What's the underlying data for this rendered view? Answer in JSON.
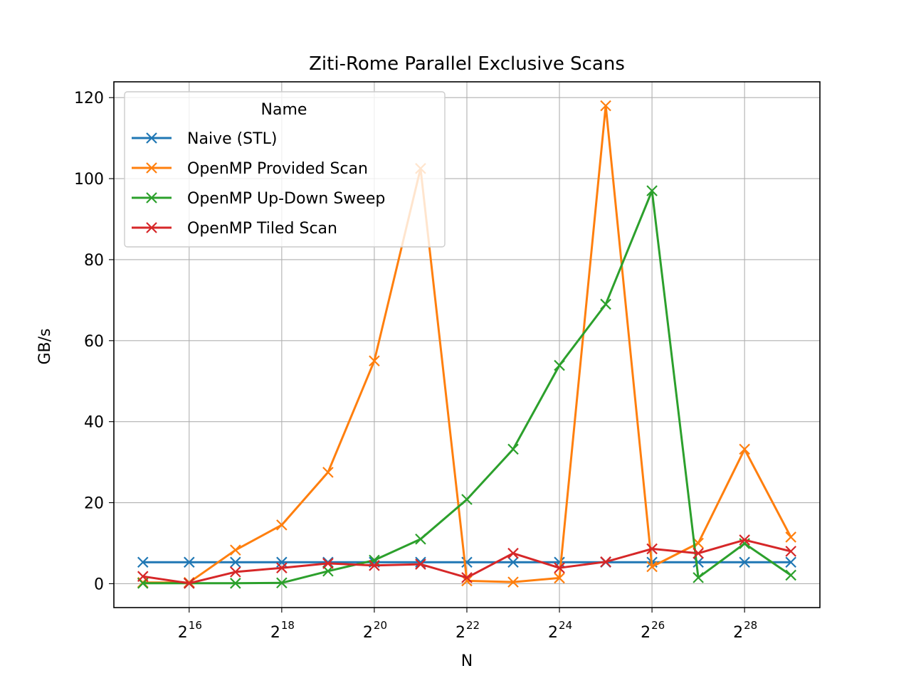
{
  "chart_data": {
    "type": "line",
    "title": "Ziti-Rome Parallel Exclusive Scans",
    "xlabel": "N",
    "ylabel": "GB/s",
    "x_scale": "log2",
    "x": [
      32768,
      65536,
      131072,
      262144,
      524288,
      1048576,
      2097152,
      4194304,
      8388608,
      16777216,
      33554432,
      67108864,
      134217728,
      268435456,
      536870912
    ],
    "xlim": [
      21220,
      829500000
    ],
    "ylim": [
      -5.9,
      123.9
    ],
    "x_ticks": [
      {
        "base": "2",
        "exp": "16",
        "value": 65536
      },
      {
        "base": "2",
        "exp": "18",
        "value": 262144
      },
      {
        "base": "2",
        "exp": "20",
        "value": 1048576
      },
      {
        "base": "2",
        "exp": "22",
        "value": 4194304
      },
      {
        "base": "2",
        "exp": "24",
        "value": 16777216
      },
      {
        "base": "2",
        "exp": "26",
        "value": 67108864
      },
      {
        "base": "2",
        "exp": "28",
        "value": 268435456
      }
    ],
    "y_ticks": [
      0,
      20,
      40,
      60,
      80,
      100,
      120
    ],
    "grid": true,
    "legend": {
      "title": "Name",
      "position": "top-left"
    },
    "series": [
      {
        "name": "Naive (STL)",
        "color": "#1f77b4",
        "marker": "x",
        "values": [
          5.3,
          5.3,
          5.3,
          5.3,
          5.3,
          5.3,
          5.3,
          5.3,
          5.3,
          5.3,
          5.3,
          5.3,
          5.3,
          5.3,
          5.3
        ]
      },
      {
        "name": "OpenMP Provided Scan",
        "color": "#ff7f0e",
        "marker": "x",
        "values": [
          0.3,
          0.3,
          8.3,
          14.5,
          27.5,
          55.0,
          102.5,
          0.7,
          0.4,
          1.4,
          118.0,
          4.2,
          10.0,
          33.2,
          11.5
        ]
      },
      {
        "name": "OpenMP Up-Down Sweep",
        "color": "#2ca02c",
        "marker": "x",
        "values": [
          0.1,
          0.1,
          0.1,
          0.2,
          3.1,
          5.8,
          11.0,
          20.8,
          33.2,
          53.9,
          69.0,
          97.0,
          1.5,
          9.9,
          2.1
        ]
      },
      {
        "name": "OpenMP Tiled Scan",
        "color": "#d62728",
        "marker": "x",
        "values": [
          1.8,
          0.1,
          2.9,
          3.9,
          5.0,
          4.5,
          4.8,
          1.5,
          7.5,
          3.9,
          5.4,
          8.6,
          7.5,
          10.8,
          8.0
        ]
      }
    ]
  }
}
